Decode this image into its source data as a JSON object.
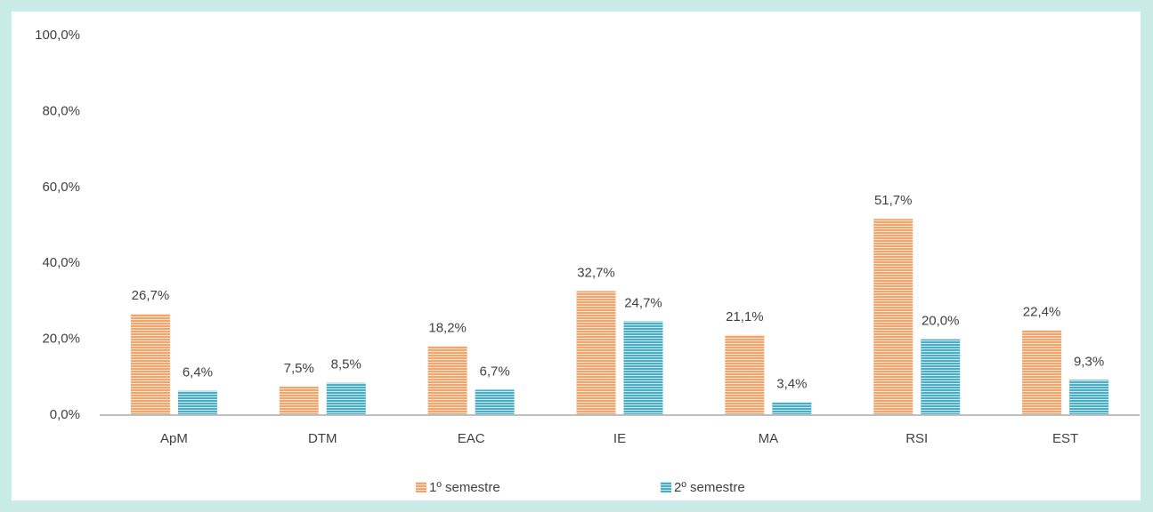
{
  "chart_data": {
    "type": "bar",
    "categories": [
      "ApM",
      "DTM",
      "EAC",
      "IE",
      "MA",
      "RSI",
      "EST"
    ],
    "series": [
      {
        "name": "1º semestre",
        "color": "#f4a469",
        "values": [
          26.7,
          7.5,
          18.2,
          32.7,
          21.1,
          51.7,
          22.4
        ],
        "value_labels": [
          "26,7%",
          "7,5%",
          "18,2%",
          "32,7%",
          "21,1%",
          "51,7%",
          "22,4%"
        ]
      },
      {
        "name": "2º semestre",
        "color": "#4aaec6",
        "values": [
          6.4,
          8.5,
          6.7,
          24.7,
          3.4,
          20.0,
          9.3
        ],
        "value_labels": [
          "6,4%",
          "8,5%",
          "6,7%",
          "24,7%",
          "3,4%",
          "20,0%",
          "9,3%"
        ]
      }
    ],
    "ylim": [
      0,
      100
    ],
    "yticks": [
      {
        "value": 0,
        "label": "0,0%"
      },
      {
        "value": 20,
        "label": "20,0%"
      },
      {
        "value": 40,
        "label": "40,0%"
      },
      {
        "value": 60,
        "label": "60,0%"
      },
      {
        "value": 80,
        "label": "80,0%"
      },
      {
        "value": 100,
        "label": "100,0%"
      }
    ],
    "grid": false,
    "legend": "bottom"
  }
}
